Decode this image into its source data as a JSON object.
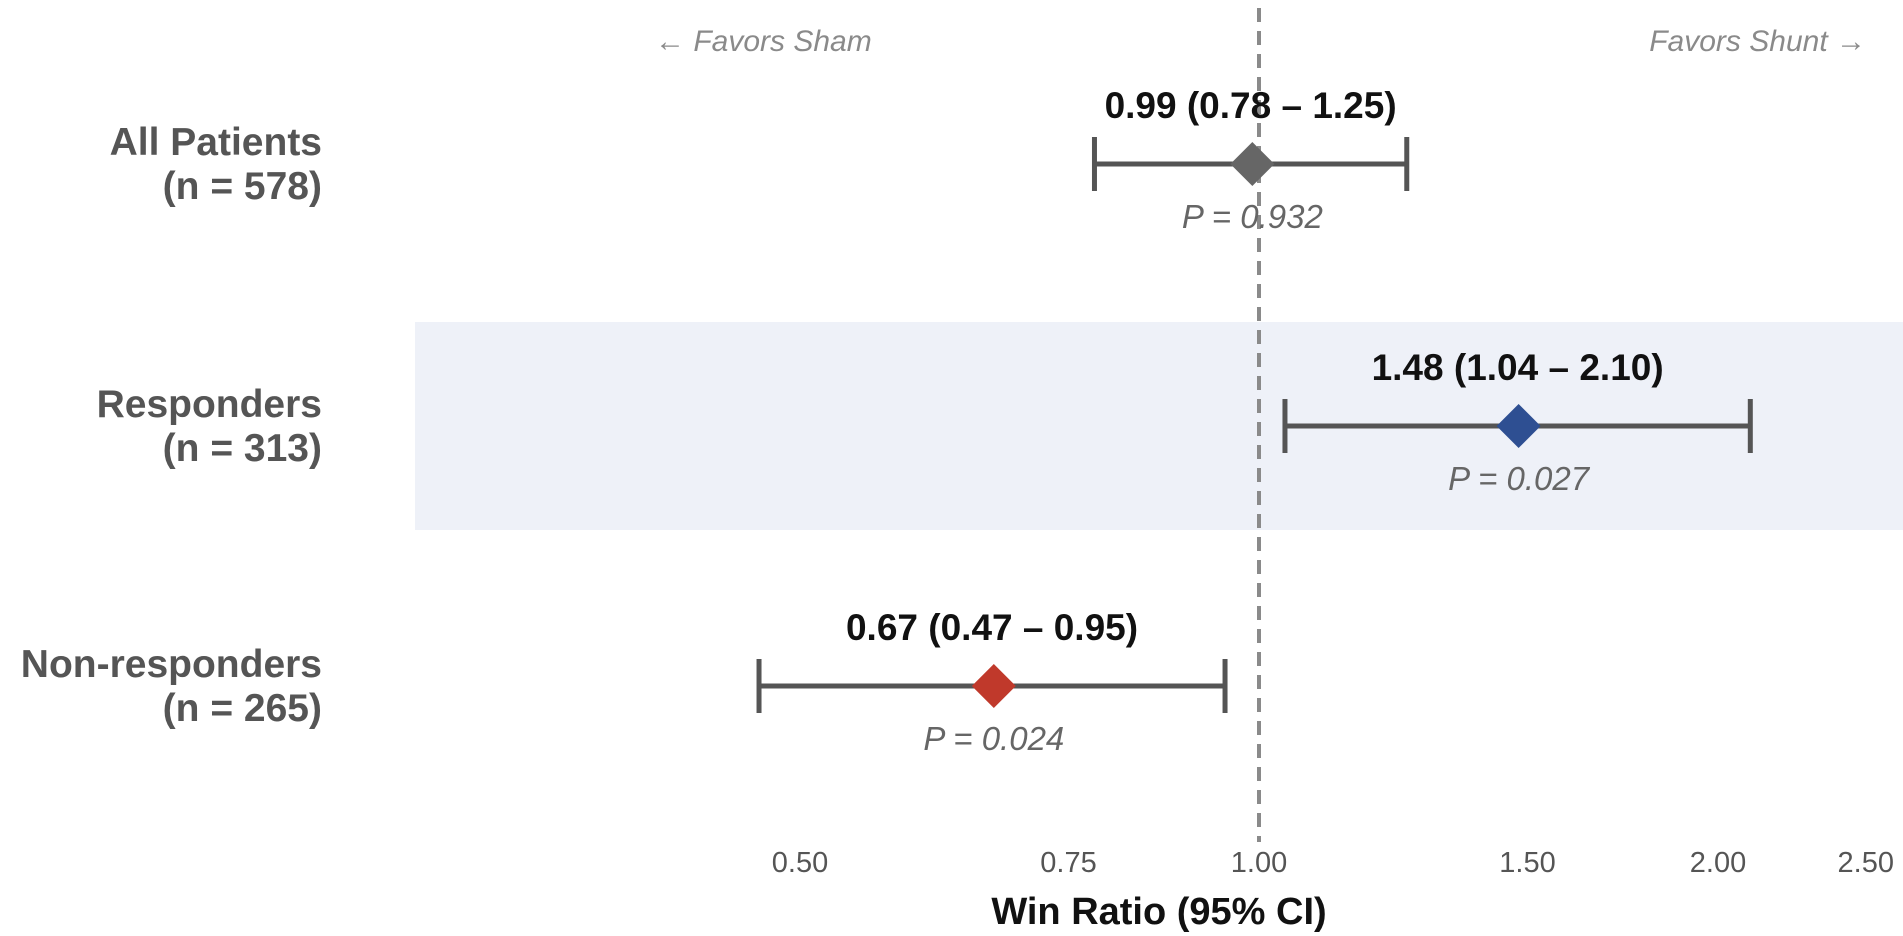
{
  "chart_data": {
    "type": "forest",
    "scale": "log",
    "xlim": [
      0.47,
      2.5
    ],
    "reference_line": 1.0,
    "xlabel": "Win Ratio (95% CI)",
    "xticks": [
      {
        "value": 0.5,
        "label": "0.50"
      },
      {
        "value": 0.75,
        "label": "0.75"
      },
      {
        "value": 1.0,
        "label": "1.00"
      },
      {
        "value": 1.5,
        "label": "1.50"
      },
      {
        "value": 2.0,
        "label": "2.00"
      },
      {
        "value": 2.5,
        "label": "2.50"
      }
    ],
    "annotations": {
      "left": "← Favors Sham",
      "right": "Favors Shunt →"
    },
    "rows": [
      {
        "label": "All Patients",
        "n_label": "(n = 578)",
        "estimate": 0.99,
        "ci_low": 0.78,
        "ci_high": 1.25,
        "estimate_label": "0.99 (0.78 – 1.25)",
        "p_label": "P = 0.932",
        "color": "#666666",
        "highlight": false
      },
      {
        "label": "Responders",
        "n_label": "(n = 313)",
        "estimate": 1.48,
        "ci_low": 1.04,
        "ci_high": 2.1,
        "estimate_label": "1.48 (1.04 – 2.10)",
        "p_label": "P = 0.027",
        "color": "#2e4f92",
        "highlight": true
      },
      {
        "label": "Non-responders",
        "n_label": "(n = 265)",
        "estimate": 0.67,
        "ci_low": 0.47,
        "ci_high": 0.95,
        "estimate_label": "0.67 (0.47 – 0.95)",
        "p_label": "P = 0.024",
        "color": "#c0392b",
        "highlight": false
      }
    ],
    "colors": {
      "ci_line": "#555555",
      "reference_line": "#8a8a8a",
      "highlight_band": "#eef1f8"
    }
  }
}
